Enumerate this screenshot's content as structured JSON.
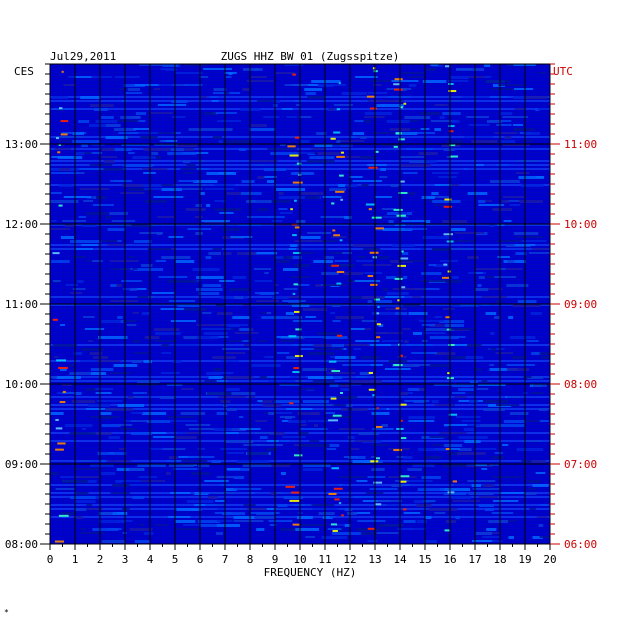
{
  "chart_data": {
    "type": "heatmap",
    "date": "Jul29,2011",
    "title": "ZUGS HHZ BW 01 (Zugsspitze)",
    "xlabel": "FREQUENCY (HZ)",
    "left_axis_label": "CES",
    "right_axis_label": "UTC",
    "xlim": [
      0,
      20
    ],
    "x_ticks": [
      "0",
      "1",
      "2",
      "3",
      "4",
      "5",
      "6",
      "7",
      "8",
      "9",
      "10",
      "11",
      "12",
      "13",
      "14",
      "15",
      "16",
      "17",
      "18",
      "19",
      "20"
    ],
    "left_ticks": [
      "13:00",
      "12:00",
      "11:00",
      "10:00",
      "09:00",
      "08:00"
    ],
    "right_ticks": [
      "11:00",
      "10:00",
      "09:00",
      "08:00",
      "07:00",
      "06:00"
    ],
    "footer_mark": "*",
    "grid": true,
    "colors": {
      "background": "#0000cc",
      "left_labels": "#000000",
      "right_labels": "#cc0000",
      "grid": "#000000"
    }
  }
}
